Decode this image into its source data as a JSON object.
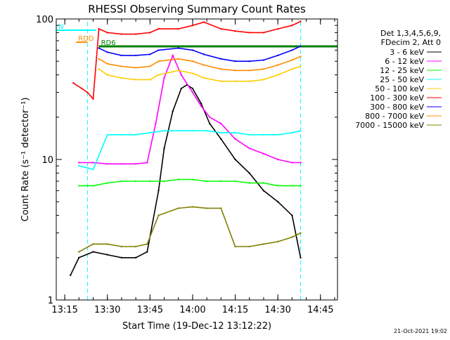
{
  "chart_data": {
    "type": "line",
    "title": "RHESSI Observing Summary Count Rates",
    "xlabel": "Start Time (19-Dec-12 13:12:22)",
    "ylabel": "Count Rate (s⁻¹ detector⁻¹)",
    "y_scale": "log",
    "ylim": [
      1,
      100
    ],
    "xlim": [
      "13:12",
      "14:51"
    ],
    "x_ticks": [
      "13:15",
      "13:30",
      "13:45",
      "14:00",
      "14:15",
      "14:30",
      "14:45"
    ],
    "y_ticks": [
      "1",
      "10",
      "100"
    ],
    "legend_position": "right",
    "legend_header": [
      "Det 1,3,4,5,6,9,",
      "FDecim 2, Att 0"
    ],
    "timestamp": "21-Oct-2021 19:02",
    "flags": [
      {
        "label": "RDD",
        "color": "#ff8c00",
        "from": "13:19",
        "to": "13:23"
      },
      {
        "label": "RD6",
        "color": "#008000",
        "from": "13:27",
        "to": "14:51"
      },
      {
        "label": "N",
        "color": "#00ffff",
        "from": "13:12",
        "to": "13:26"
      }
    ],
    "night_intervals": [
      [
        "13:12",
        "13:23"
      ],
      [
        "14:38",
        "14:51"
      ]
    ],
    "series": [
      {
        "name": "3 - 6 keV",
        "color": "#000000",
        "x": [
          "13:17",
          "13:20",
          "13:25",
          "13:30",
          "13:35",
          "13:40",
          "13:44",
          "13:48",
          "13:50",
          "13:53",
          "13:56",
          "13:58",
          "14:00",
          "14:03",
          "14:06",
          "14:10",
          "14:15",
          "14:20",
          "14:25",
          "14:30",
          "14:35",
          "14:38"
        ],
        "y": [
          1.5,
          2.0,
          2.2,
          2.1,
          2.0,
          2.0,
          2.2,
          6,
          12,
          22,
          32,
          34,
          32,
          25,
          18,
          14,
          10,
          8,
          6,
          5,
          4,
          2
        ]
      },
      {
        "name": "6 - 12 keV",
        "color": "#ff00ff",
        "x": [
          "13:20",
          "13:25",
          "13:30",
          "13:35",
          "13:40",
          "13:44",
          "13:47",
          "13:50",
          "13:53",
          "13:56",
          "14:00",
          "14:03",
          "14:06",
          "14:10",
          "14:15",
          "14:20",
          "14:25",
          "14:30",
          "14:35",
          "14:38"
        ],
        "y": [
          9.5,
          9.5,
          9.3,
          9.3,
          9.3,
          9.5,
          18,
          38,
          55,
          40,
          30,
          24,
          20,
          18,
          14,
          12,
          11,
          10,
          9.5,
          9.5
        ]
      },
      {
        "name": "12 - 25 keV",
        "color": "#00ff00",
        "x": [
          "13:20",
          "13:25",
          "13:30",
          "13:35",
          "13:40",
          "13:45",
          "13:50",
          "13:55",
          "14:00",
          "14:05",
          "14:10",
          "14:15",
          "14:20",
          "14:25",
          "14:30",
          "14:35",
          "14:38"
        ],
        "y": [
          6.5,
          6.5,
          6.8,
          7,
          7,
          7,
          7,
          7.2,
          7.2,
          7,
          7,
          7,
          6.8,
          6.8,
          6.5,
          6.5,
          6.5
        ]
      },
      {
        "name": "25 - 50 keV",
        "color": "#00ffff",
        "x": [
          "13:20",
          "13:25",
          "13:30",
          "13:35",
          "13:40",
          "13:45",
          "13:50",
          "13:55",
          "14:00",
          "14:05",
          "14:10",
          "14:15",
          "14:20",
          "14:25",
          "14:30",
          "14:35",
          "14:38"
        ],
        "y": [
          9,
          8.5,
          15,
          15,
          15,
          15.5,
          16,
          16,
          16,
          16,
          15.5,
          15.5,
          15,
          15,
          15,
          15.5,
          16
        ]
      },
      {
        "name": "50 - 100 keV",
        "color": "#ffcc00",
        "x": [
          "13:27",
          "13:30",
          "13:35",
          "13:40",
          "13:45",
          "13:48",
          "13:55",
          "14:00",
          "14:04",
          "14:10",
          "14:15",
          "14:20",
          "14:25",
          "14:30",
          "14:35",
          "14:38"
        ],
        "y": [
          44,
          40,
          38,
          37,
          37,
          40,
          43,
          41,
          38,
          36,
          36,
          36,
          37,
          40,
          44,
          46
        ]
      },
      {
        "name": "100 - 300 keV",
        "color": "#ff0000",
        "x": [
          "13:18",
          "13:21",
          "13:23",
          "13:25",
          "13:27",
          "13:30",
          "13:35",
          "13:40",
          "13:45",
          "13:48",
          "13:55",
          "14:00",
          "14:04",
          "14:10",
          "14:15",
          "14:20",
          "14:25",
          "14:30",
          "14:35",
          "14:38"
        ],
        "y": [
          35,
          32,
          30,
          27,
          85,
          80,
          78,
          78,
          80,
          85,
          85,
          90,
          95,
          85,
          82,
          80,
          80,
          85,
          90,
          96
        ]
      },
      {
        "name": "300 - 800 keV",
        "color": "#0000ff",
        "x": [
          "13:27",
          "13:30",
          "13:35",
          "13:40",
          "13:45",
          "13:48",
          "13:55",
          "14:00",
          "14:04",
          "14:10",
          "14:15",
          "14:20",
          "14:25",
          "14:30",
          "14:35",
          "14:38"
        ],
        "y": [
          62,
          58,
          55,
          55,
          56,
          60,
          62,
          60,
          56,
          52,
          50,
          50,
          51,
          55,
          60,
          64
        ]
      },
      {
        "name": "800 - 7000 keV",
        "color": "#ff8c00",
        "x": [
          "13:27",
          "13:30",
          "13:35",
          "13:40",
          "13:45",
          "13:48",
          "13:55",
          "14:00",
          "14:04",
          "14:10",
          "14:15",
          "14:20",
          "14:25",
          "14:30",
          "14:35",
          "14:38"
        ],
        "y": [
          52,
          48,
          46,
          45,
          46,
          50,
          52,
          50,
          47,
          44,
          43,
          43,
          44,
          47,
          51,
          54
        ]
      },
      {
        "name": "7000 - 15000 keV",
        "color": "#808000",
        "x": [
          "13:20",
          "13:25",
          "13:30",
          "13:35",
          "13:40",
          "13:44",
          "13:48",
          "13:55",
          "14:00",
          "14:05",
          "14:10",
          "14:15",
          "14:20",
          "14:25",
          "14:30",
          "14:35",
          "14:38"
        ],
        "y": [
          2.2,
          2.5,
          2.5,
          2.4,
          2.4,
          2.5,
          4,
          4.5,
          4.6,
          4.5,
          4.5,
          2.4,
          2.4,
          2.5,
          2.6,
          2.8,
          3
        ]
      }
    ]
  }
}
